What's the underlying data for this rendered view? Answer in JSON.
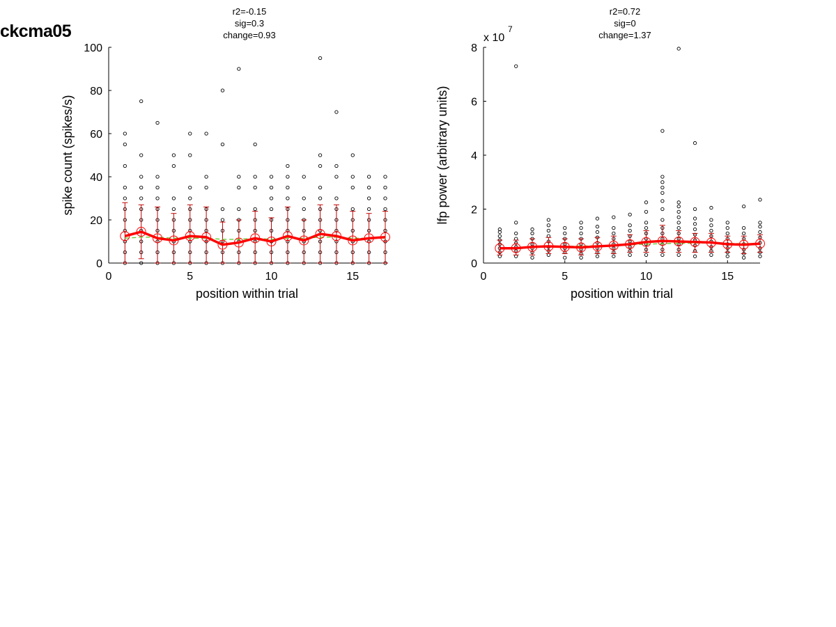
{
  "page_title": "ckcma05",
  "colors": {
    "points": "#000000",
    "mean": "#ff0000",
    "errorbar": "#c00000",
    "fit": "#66cc33"
  },
  "chart_data": [
    {
      "type": "scatter",
      "stats": [
        "r2=-0.15",
        "sig=0.3",
        "change=0.93"
      ],
      "xlabel": "position within trial",
      "ylabel": "spike count (spikes/s)",
      "exponent_label": "",
      "xlim": [
        0,
        17
      ],
      "ylim": [
        0,
        100
      ],
      "xticks": [
        0,
        5,
        10,
        15
      ],
      "yticks": [
        0,
        20,
        40,
        60,
        80,
        100
      ],
      "grid": false,
      "positions": [
        1,
        2,
        3,
        4,
        5,
        6,
        7,
        8,
        9,
        10,
        11,
        12,
        13,
        14,
        15,
        16,
        17
      ],
      "points": [
        [
          0,
          5,
          10,
          15,
          20,
          25,
          30,
          35,
          45,
          55,
          60
        ],
        [
          0,
          5,
          10,
          15,
          20,
          25,
          30,
          35,
          40,
          50,
          75
        ],
        [
          0,
          5,
          10,
          15,
          20,
          25,
          30,
          35,
          40,
          65
        ],
        [
          0,
          5,
          10,
          15,
          20,
          25,
          30,
          45,
          50
        ],
        [
          0,
          5,
          10,
          15,
          20,
          25,
          30,
          35,
          50,
          60
        ],
        [
          0,
          5,
          10,
          15,
          20,
          25,
          35,
          40,
          60
        ],
        [
          0,
          5,
          10,
          15,
          20,
          25,
          55,
          80
        ],
        [
          0,
          5,
          10,
          15,
          20,
          25,
          35,
          40,
          90
        ],
        [
          0,
          5,
          10,
          15,
          20,
          25,
          35,
          40,
          55
        ],
        [
          0,
          5,
          10,
          15,
          20,
          25,
          30,
          35,
          40
        ],
        [
          0,
          5,
          10,
          15,
          20,
          25,
          30,
          35,
          40,
          45
        ],
        [
          0,
          5,
          10,
          15,
          20,
          25,
          30,
          40
        ],
        [
          0,
          5,
          10,
          15,
          20,
          25,
          30,
          35,
          45,
          50,
          95
        ],
        [
          0,
          5,
          10,
          15,
          20,
          25,
          30,
          40,
          45,
          70
        ],
        [
          0,
          5,
          10,
          15,
          20,
          25,
          35,
          40,
          50
        ],
        [
          0,
          5,
          10,
          15,
          20,
          25,
          30,
          35,
          40
        ],
        [
          0,
          5,
          10,
          15,
          20,
          25,
          30,
          35,
          40
        ]
      ],
      "mean": [
        12.5,
        14.5,
        11.5,
        10.5,
        12.5,
        12.0,
        8.5,
        9.5,
        11.5,
        10.0,
        12.5,
        10.5,
        13.5,
        12.5,
        10.5,
        11.5,
        12.0
      ],
      "err_low": [
        0,
        2,
        0,
        0,
        0,
        0,
        0,
        0,
        0,
        0,
        0,
        0,
        0,
        0,
        0,
        0,
        0
      ],
      "err_high": [
        28,
        27,
        26,
        23,
        27,
        26,
        19,
        20,
        24,
        21,
        26,
        20,
        27,
        27,
        24,
        23,
        24
      ],
      "fit": [
        11.5,
        12.0,
        12.0,
        11.5,
        11.5,
        11.5,
        11.0,
        11.0,
        11.5,
        11.0,
        11.5,
        11.5,
        12.0,
        12.0,
        11.5,
        11.5,
        11.5
      ]
    },
    {
      "type": "scatter",
      "stats": [
        "r2=0.72",
        "sig=0",
        "change=1.37"
      ],
      "xlabel": "position within trial",
      "ylabel": "lfp power (arbitrary units)",
      "exponent_label": "x 10",
      "exponent_power": "7",
      "xlim": [
        0,
        17
      ],
      "ylim": [
        0,
        8
      ],
      "xticks": [
        0,
        5,
        10,
        15
      ],
      "yticks": [
        0,
        2,
        4,
        6,
        8
      ],
      "grid": false,
      "positions": [
        1,
        2,
        3,
        4,
        5,
        6,
        7,
        8,
        9,
        10,
        11,
        12,
        13,
        14,
        15,
        16,
        17
      ],
      "points": [
        [
          0.25,
          0.4,
          0.55,
          0.7,
          0.85,
          1.0,
          1.15,
          1.25
        ],
        [
          0.25,
          0.45,
          0.6,
          0.75,
          0.9,
          1.1,
          1.5,
          7.3
        ],
        [
          0.2,
          0.4,
          0.55,
          0.7,
          0.9,
          1.1,
          1.25
        ],
        [
          0.3,
          0.45,
          0.6,
          0.8,
          1.0,
          1.2,
          1.4,
          1.6
        ],
        [
          0.2,
          0.4,
          0.55,
          0.7,
          0.9,
          1.1,
          1.3
        ],
        [
          0.2,
          0.35,
          0.5,
          0.7,
          0.9,
          1.1,
          1.3,
          1.5
        ],
        [
          0.25,
          0.4,
          0.55,
          0.75,
          0.95,
          1.15,
          1.35,
          1.65
        ],
        [
          0.25,
          0.4,
          0.55,
          0.7,
          0.9,
          1.1,
          1.3,
          1.7
        ],
        [
          0.3,
          0.45,
          0.6,
          0.8,
          1.0,
          1.2,
          1.4,
          1.8
        ],
        [
          0.3,
          0.5,
          0.7,
          0.9,
          1.1,
          1.3,
          1.5,
          1.9,
          2.25
        ],
        [
          0.3,
          0.5,
          0.7,
          0.9,
          1.1,
          1.3,
          1.6,
          2.0,
          2.3,
          2.6,
          2.8,
          3.0,
          3.2,
          4.9
        ],
        [
          0.3,
          0.5,
          0.7,
          0.9,
          1.1,
          1.3,
          1.5,
          1.7,
          1.9,
          2.1,
          2.25,
          7.95
        ],
        [
          0.25,
          0.45,
          0.65,
          0.85,
          1.05,
          1.25,
          1.45,
          1.65,
          2.0,
          4.45
        ],
        [
          0.3,
          0.45,
          0.6,
          0.8,
          1.0,
          1.2,
          1.4,
          1.6,
          2.05
        ],
        [
          0.25,
          0.4,
          0.55,
          0.7,
          0.9,
          1.1,
          1.3,
          1.5
        ],
        [
          0.2,
          0.35,
          0.5,
          0.7,
          0.9,
          1.1,
          1.3,
          2.1
        ],
        [
          0.25,
          0.4,
          0.55,
          0.75,
          0.95,
          1.15,
          1.35,
          1.5,
          2.35
        ]
      ],
      "mean": [
        0.55,
        0.55,
        0.6,
        0.62,
        0.6,
        0.58,
        0.62,
        0.65,
        0.7,
        0.78,
        0.82,
        0.8,
        0.78,
        0.76,
        0.7,
        0.68,
        0.72
      ],
      "err_low": [
        0.3,
        0.3,
        0.3,
        0.35,
        0.35,
        0.3,
        0.35,
        0.35,
        0.4,
        0.4,
        0.4,
        0.4,
        0.4,
        0.4,
        0.4,
        0.35,
        0.4
      ],
      "err_high": [
        0.85,
        0.85,
        0.9,
        0.95,
        0.9,
        0.9,
        0.95,
        1.0,
        1.05,
        1.2,
        1.4,
        1.2,
        1.1,
        1.1,
        1.0,
        1.0,
        1.05
      ],
      "fit": [
        0.55,
        0.57,
        0.59,
        0.61,
        0.62,
        0.63,
        0.64,
        0.66,
        0.68,
        0.7,
        0.72,
        0.73,
        0.74,
        0.74,
        0.73,
        0.72,
        0.72
      ]
    }
  ]
}
